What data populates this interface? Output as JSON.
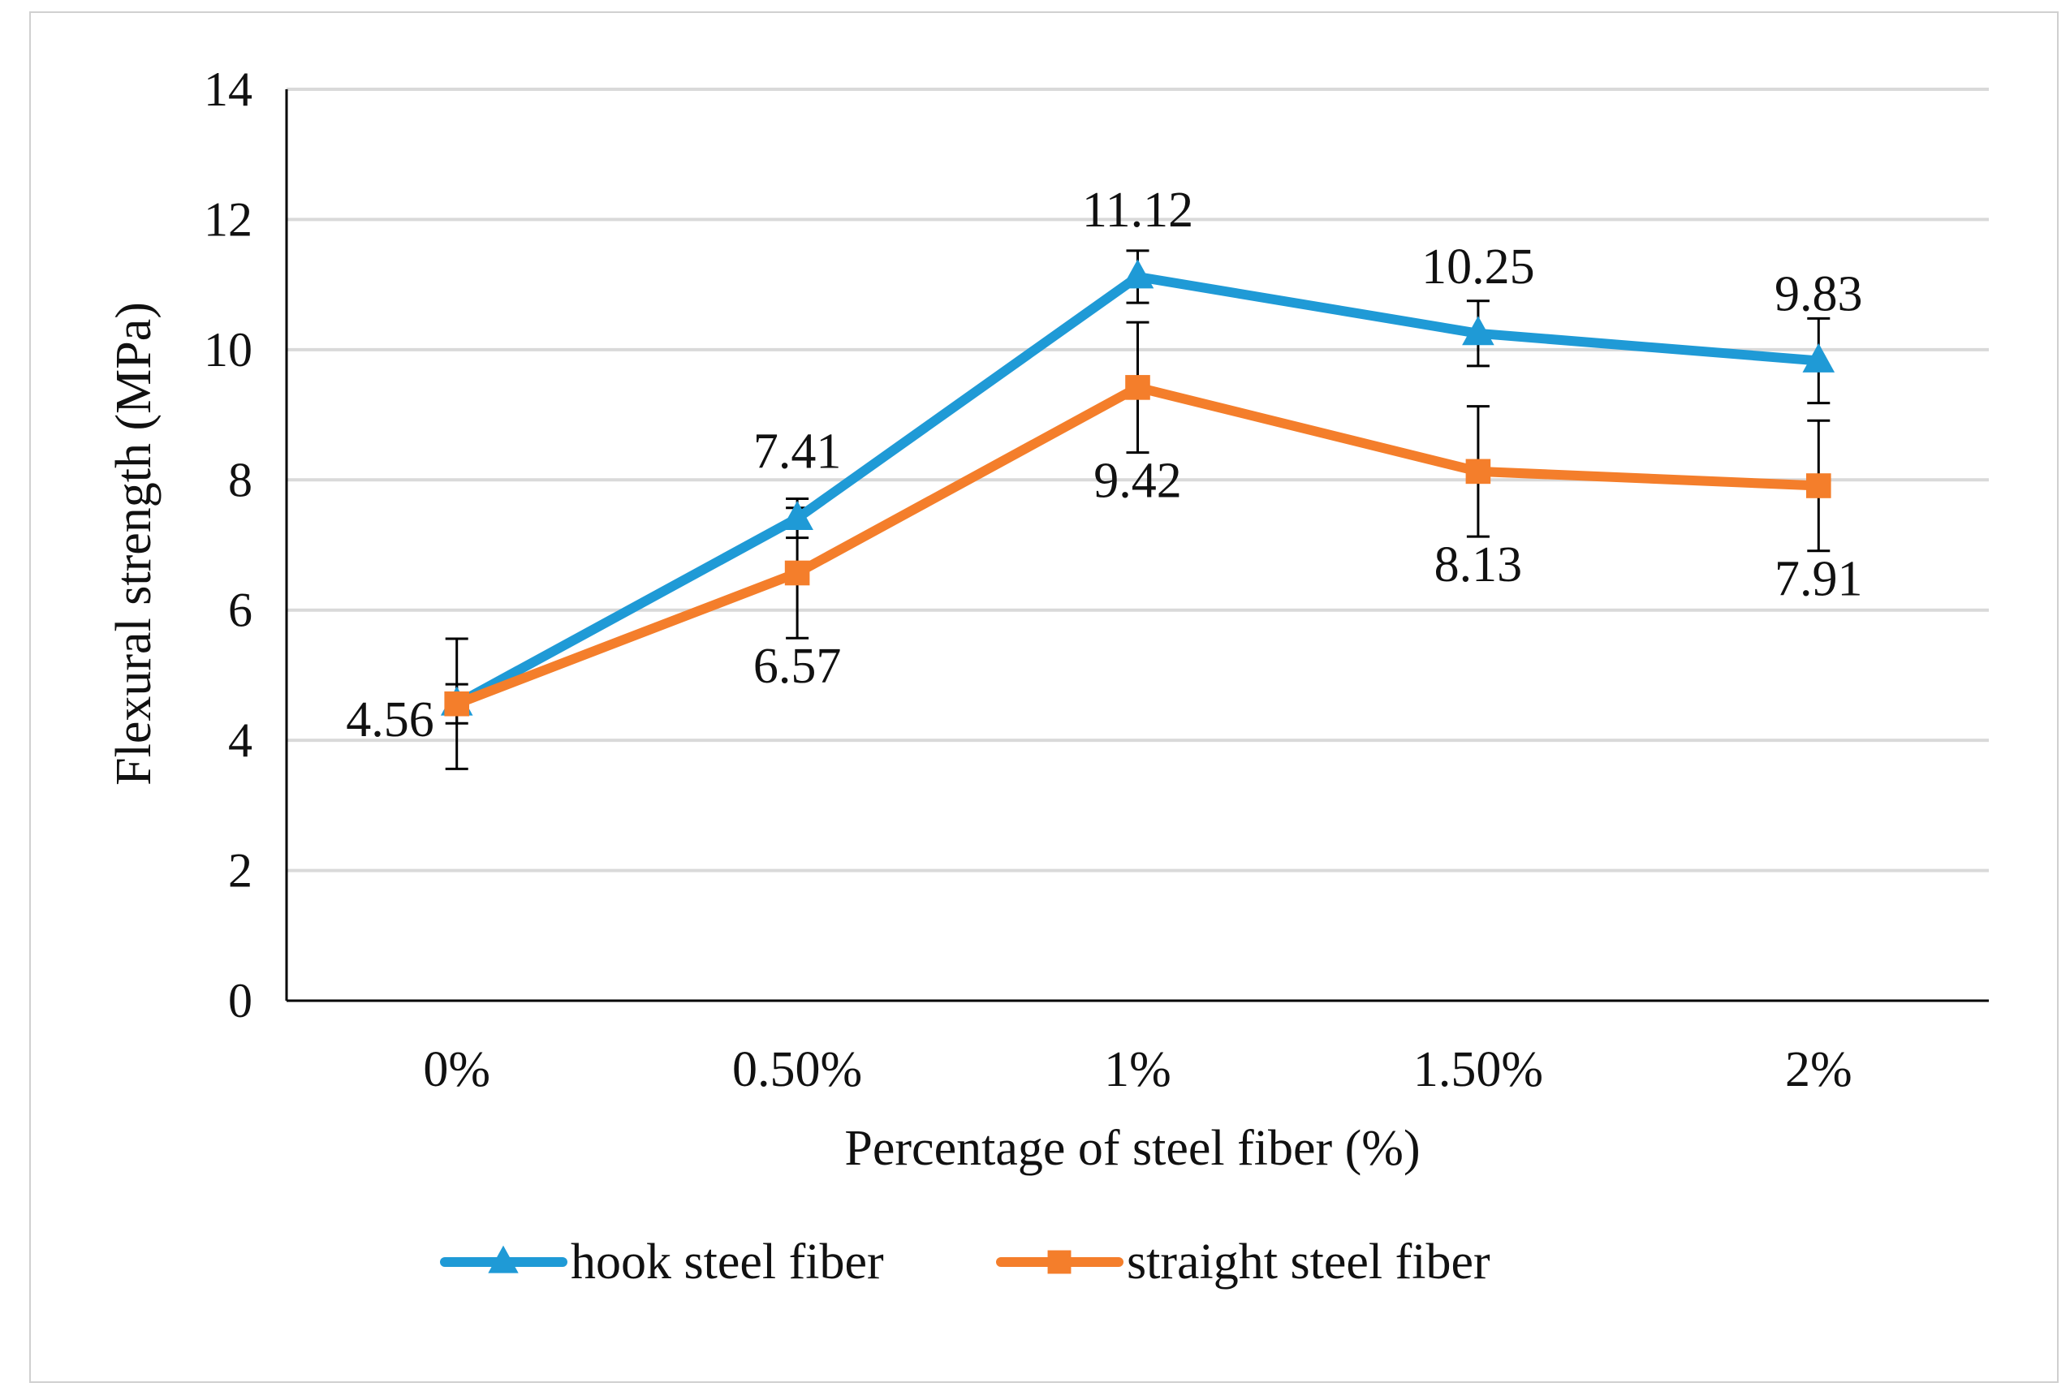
{
  "chart_data": {
    "type": "line",
    "title": "",
    "xlabel": "Percentage of steel fiber (%)",
    "ylabel": "Flexural strength (MPa)",
    "categories": [
      "0%",
      "0.50%",
      "1%",
      "1.50%",
      "2%"
    ],
    "ylim": [
      0,
      14
    ],
    "yticks": [
      0,
      2,
      4,
      6,
      8,
      10,
      12,
      14
    ],
    "grid": true,
    "legend_position": "bottom",
    "series": [
      {
        "name": "hook steel fiber",
        "color": "#1f9ad6",
        "marker": "triangle",
        "values": [
          4.56,
          7.41,
          11.12,
          10.25,
          9.83
        ],
        "labels": [
          "4.56",
          "7.41",
          "11.12",
          "10.25",
          "9.83"
        ],
        "error": [
          0.3,
          0.3,
          0.4,
          0.5,
          0.65
        ]
      },
      {
        "name": "straight steel fiber",
        "color": "#f47e2b",
        "marker": "square",
        "values": [
          4.56,
          6.57,
          9.42,
          8.13,
          7.91
        ],
        "labels": [
          "",
          "6.57",
          "9.42",
          "8.13",
          "7.91"
        ],
        "error": [
          1.0,
          1.0,
          1.0,
          1.0,
          1.0
        ]
      }
    ]
  }
}
